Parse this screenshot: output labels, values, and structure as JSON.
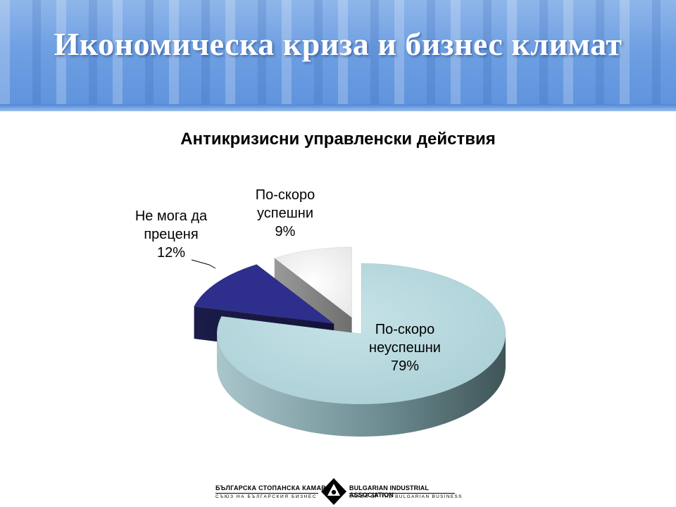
{
  "slide": {
    "title": "Икономическа криза и бизнес климат"
  },
  "chart_data": {
    "type": "pie",
    "title": "Антикризисни управленски действия",
    "three_d": true,
    "exploded": true,
    "slices": [
      {
        "label_lines": [
          "По-скоро",
          "неуспешни"
        ],
        "percent_label": "79%",
        "value": 79,
        "color": "#b8dadf"
      },
      {
        "label_lines": [
          "Не мога да",
          "преценя"
        ],
        "percent_label": "12%",
        "value": 12,
        "color": "#2e2e8c"
      },
      {
        "label_lines": [
          "По-скоро",
          "успешни"
        ],
        "percent_label": "9%",
        "value": 9,
        "color": "#f4f4f4"
      }
    ]
  },
  "footer": {
    "left_name": "БЪЛГАРСКА СТОПАНСКА КАМАРА",
    "left_sub": "СЪЮЗ НА БЪЛГАРСКИЯ БИЗНЕС",
    "right_name": "BULGARIAN INDUSTRIAL ASSOCIATION",
    "right_sub": "UNION OF THE BULGARIAN BUSINESS"
  }
}
